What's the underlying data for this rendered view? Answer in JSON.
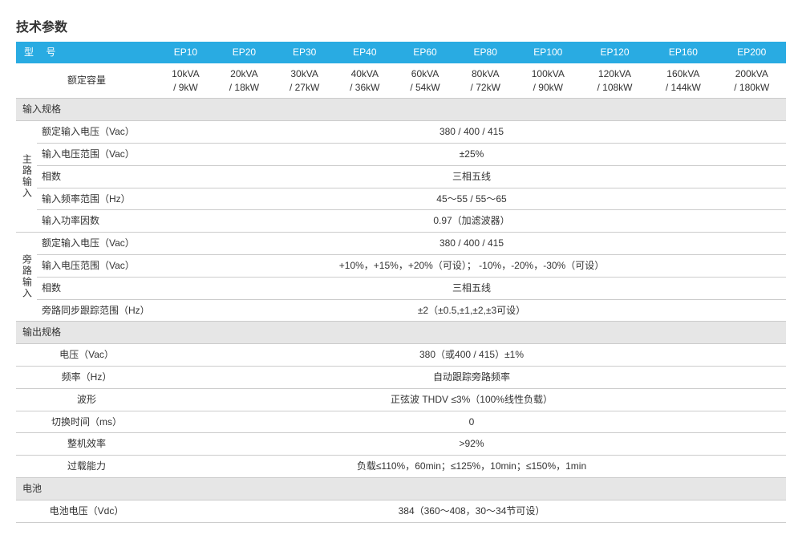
{
  "title": "技术参数",
  "colors": {
    "header_bg": "#29abe2",
    "header_text": "#ffffff",
    "section_bg": "#e6e6e6",
    "border": "#cccccc",
    "text": "#333333",
    "background": "#ffffff"
  },
  "typography": {
    "title_fontsize": 16,
    "body_fontsize": 12
  },
  "header": {
    "label": "型 号",
    "models": [
      "EP10",
      "EP20",
      "EP30",
      "EP40",
      "EP60",
      "EP80",
      "EP100",
      "EP120",
      "EP160",
      "EP200"
    ]
  },
  "rated_capacity": {
    "label": "额定容量",
    "values": [
      "10kVA\n/ 9kW",
      "20kVA\n/ 18kW",
      "30kVA\n/ 27kW",
      "40kVA\n/ 36kW",
      "60kVA\n/ 54kW",
      "80kVA\n/ 72kW",
      "100kVA\n/ 90kW",
      "120kVA\n/ 108kW",
      "160kVA\n/ 144kW",
      "200kVA\n/ 180kW"
    ]
  },
  "input_spec": {
    "section": "输入规格",
    "main_label": "主路输入",
    "bypass_label": "旁路输入",
    "main_rows": [
      {
        "label": "额定输入电压（Vac）",
        "value": "380 / 400 / 415"
      },
      {
        "label": "输入电压范围（Vac）",
        "value": "±25%"
      },
      {
        "label": "相数",
        "value": "三相五线"
      },
      {
        "label": "输入频率范围（Hz）",
        "value": "45～55 / 55～65"
      },
      {
        "label": "输入功率因数",
        "value": "0.97（加滤波器）"
      }
    ],
    "bypass_rows": [
      {
        "label": "额定输入电压（Vac）",
        "value": "380 / 400 / 415"
      },
      {
        "label": "输入电压范围（Vac）",
        "value": "+10%，+15%，+20%（可设）；  -10%，-20%，-30%（可设）"
      },
      {
        "label": "相数",
        "value": "三相五线"
      },
      {
        "label": "旁路同步跟踪范围（Hz）",
        "value": "±2（±0.5,±1,±2,±3可设）"
      }
    ]
  },
  "output_spec": {
    "section": "输出规格",
    "rows": [
      {
        "label": "电压（Vac）",
        "value": "380（或400 / 415）±1%"
      },
      {
        "label": "频率（Hz）",
        "value": "自动跟踪旁路频率"
      },
      {
        "label": "波形",
        "value": "正弦波 THDV ≤3%（100%线性负载）"
      },
      {
        "label": "切换时间（ms）",
        "value": "0"
      },
      {
        "label": "整机效率",
        "value": ">92%"
      },
      {
        "label": "过载能力",
        "value": "负载≤110%，60min；≤125%，10min；≤150%，1min"
      }
    ]
  },
  "battery": {
    "section": "电池",
    "rows": [
      {
        "label": "电池电压（Vdc）",
        "value": "384（360～408，30～34节可设）"
      }
    ]
  }
}
